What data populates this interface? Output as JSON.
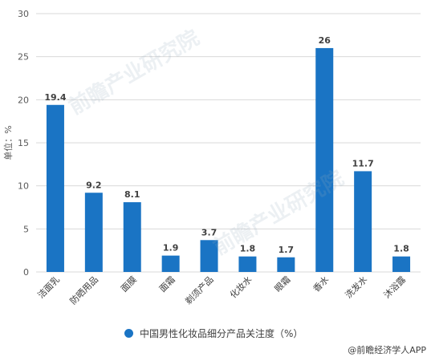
{
  "chart_data": {
    "type": "bar",
    "categories": [
      "洁面乳",
      "防晒用品",
      "面膜",
      "面霜",
      "剃须产品",
      "化妆水",
      "眼霜",
      "香水",
      "洗发水",
      "沐浴露"
    ],
    "series": [
      {
        "name": "中国男性化妆品细分产品关注度（%）",
        "values": [
          19.4,
          9.2,
          8.1,
          1.9,
          3.7,
          1.8,
          1.7,
          26,
          11.7,
          1.8
        ]
      }
    ],
    "value_labels": [
      "19.4",
      "9.2",
      "8.1",
      "1.9",
      "3.7",
      "1.8",
      "1.7",
      "26",
      "11.7",
      "1.8"
    ],
    "ylabel": "单位：%",
    "ylim": [
      0,
      30
    ],
    "yticks": [
      0,
      5,
      10,
      15,
      20,
      25,
      30
    ],
    "grid": true,
    "legend_position": "bottom",
    "bar_color": "#1a74c4"
  },
  "legend": {
    "label": "中国男性化妆品细分产品关注度（%）"
  },
  "source": {
    "label": "@前瞻经济学人APP"
  },
  "watermark": {
    "text": "前瞻产业研究院"
  }
}
